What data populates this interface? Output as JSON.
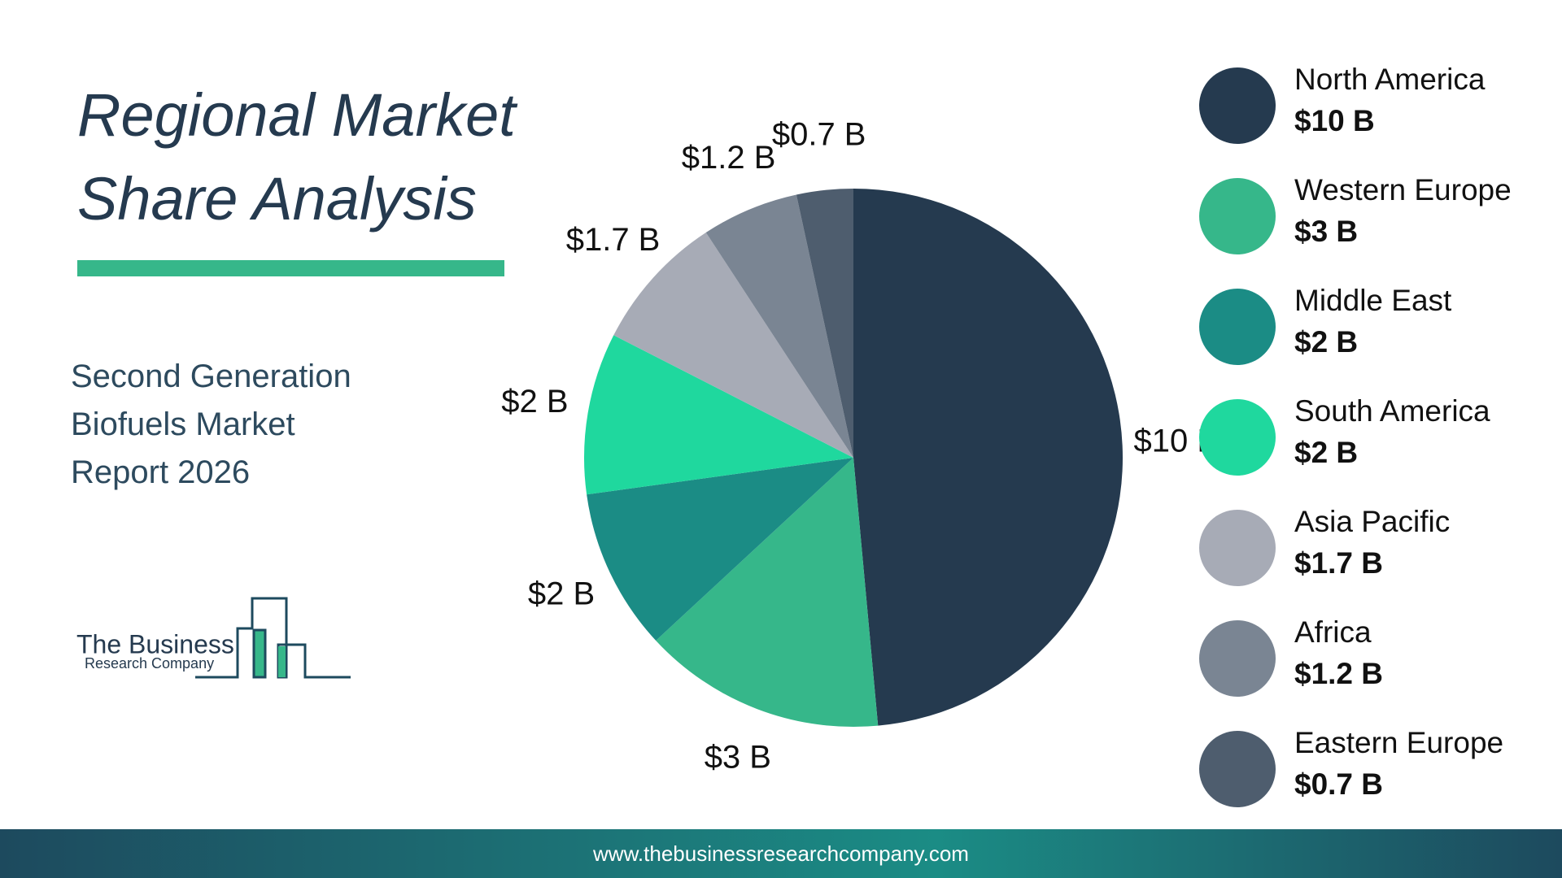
{
  "chart_data": {
    "type": "pie",
    "title": "Regional Market Share Analysis",
    "subtitle": "Second Generation Biofuels Market Report 2026",
    "categories": [
      "North America",
      "Western Europe",
      "Middle East",
      "South America",
      "Asia Pacific",
      "Africa",
      "Eastern Europe"
    ],
    "values": [
      10,
      3,
      2,
      2,
      1.7,
      1.2,
      0.7
    ],
    "value_labels": [
      "$10 B",
      "$3 B",
      "$2 B",
      "$2 B",
      "$1.7 B",
      "$1.2 B",
      "$0.7 B"
    ],
    "colors": [
      "#253a4f",
      "#36b78a",
      "#1b8c85",
      "#1fd89e",
      "#a7abb6",
      "#7a8593",
      "#4e5d6e"
    ]
  },
  "logo": {
    "line1": "The Business",
    "line2": "Research Company"
  },
  "footer": {
    "url": "www.thebusinessresearchcompany.com"
  }
}
